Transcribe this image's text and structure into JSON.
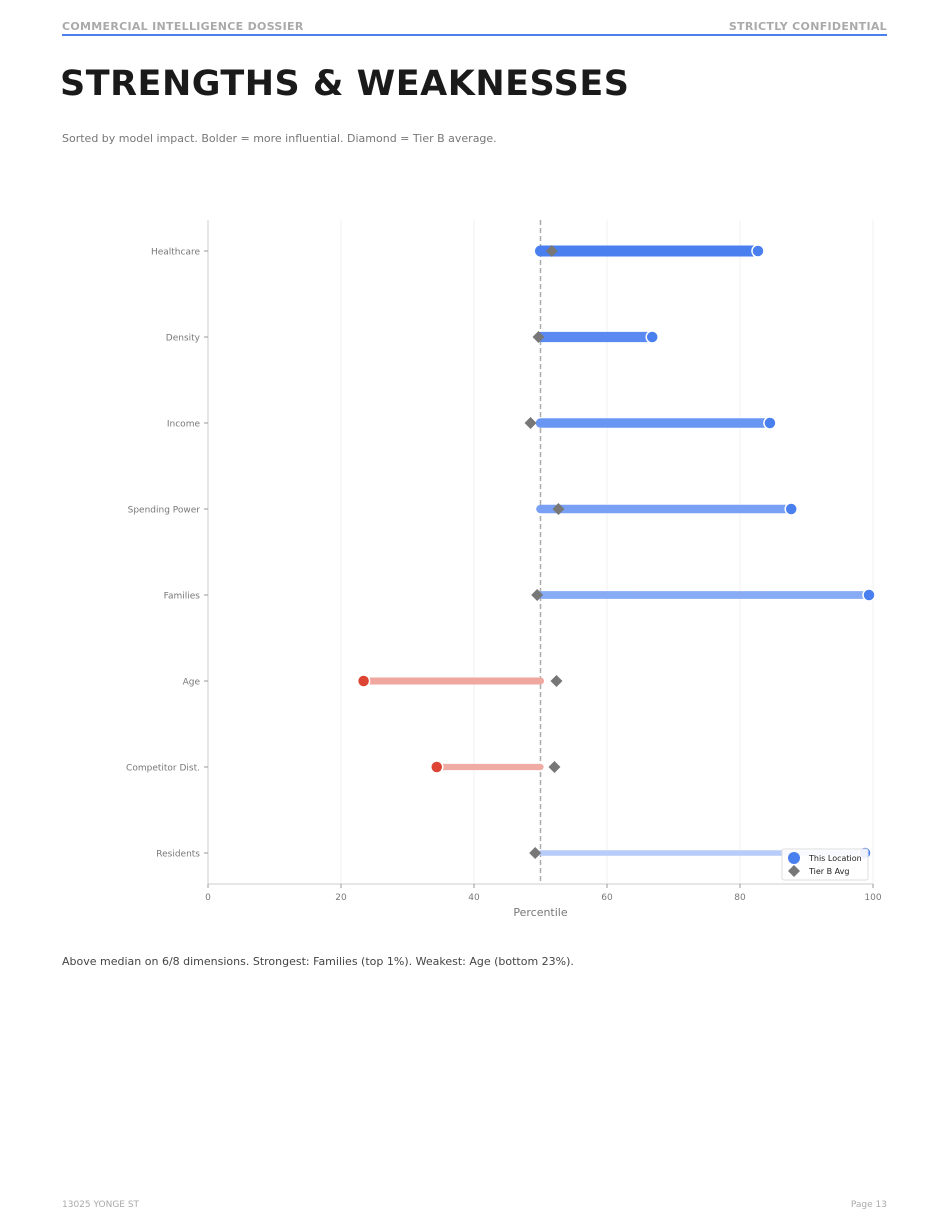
{
  "header": {
    "left": "COMMERCIAL INTELLIGENCE DOSSIER",
    "right": "STRICTLY CONFIDENTIAL",
    "accent_color": "#4a7ff0"
  },
  "page_title": "STRENGTHS & WEAKNESSES",
  "subtitle": "Sorted by model impact. Bolder = more influential. Diamond = Tier B average.",
  "chart_data": {
    "type": "dumbbell",
    "xlabel": "Percentile",
    "ylabel": "",
    "xlim": [
      0,
      100
    ],
    "xticks": [
      0,
      20,
      40,
      60,
      80,
      100
    ],
    "median": 50,
    "median_line_style": "dashed",
    "categories": [
      "Healthcare",
      "Density",
      "Income",
      "Spending Power",
      "Families",
      "Age",
      "Competitor Dist.",
      "Residents"
    ],
    "series": [
      {
        "name": "This Location",
        "values": [
          82.7,
          66.8,
          84.5,
          87.7,
          99.4,
          23.4,
          34.4,
          98.8
        ]
      },
      {
        "name": "Tier B Avg",
        "values": [
          51.7,
          49.7,
          48.5,
          52.7,
          49.5,
          52.4,
          52.1,
          49.2
        ]
      }
    ],
    "positive_color": "#4a7ff0",
    "negative_color": "#dd4433",
    "diamond_color": "#777777",
    "legend_position": "bottom-right"
  },
  "summary": "Above median on 6/8 dimensions. Strongest: Families (top 1%). Weakest: Age (bottom 23%).",
  "footer": {
    "left": "13025 YONGE ST",
    "right": "Page 13"
  }
}
